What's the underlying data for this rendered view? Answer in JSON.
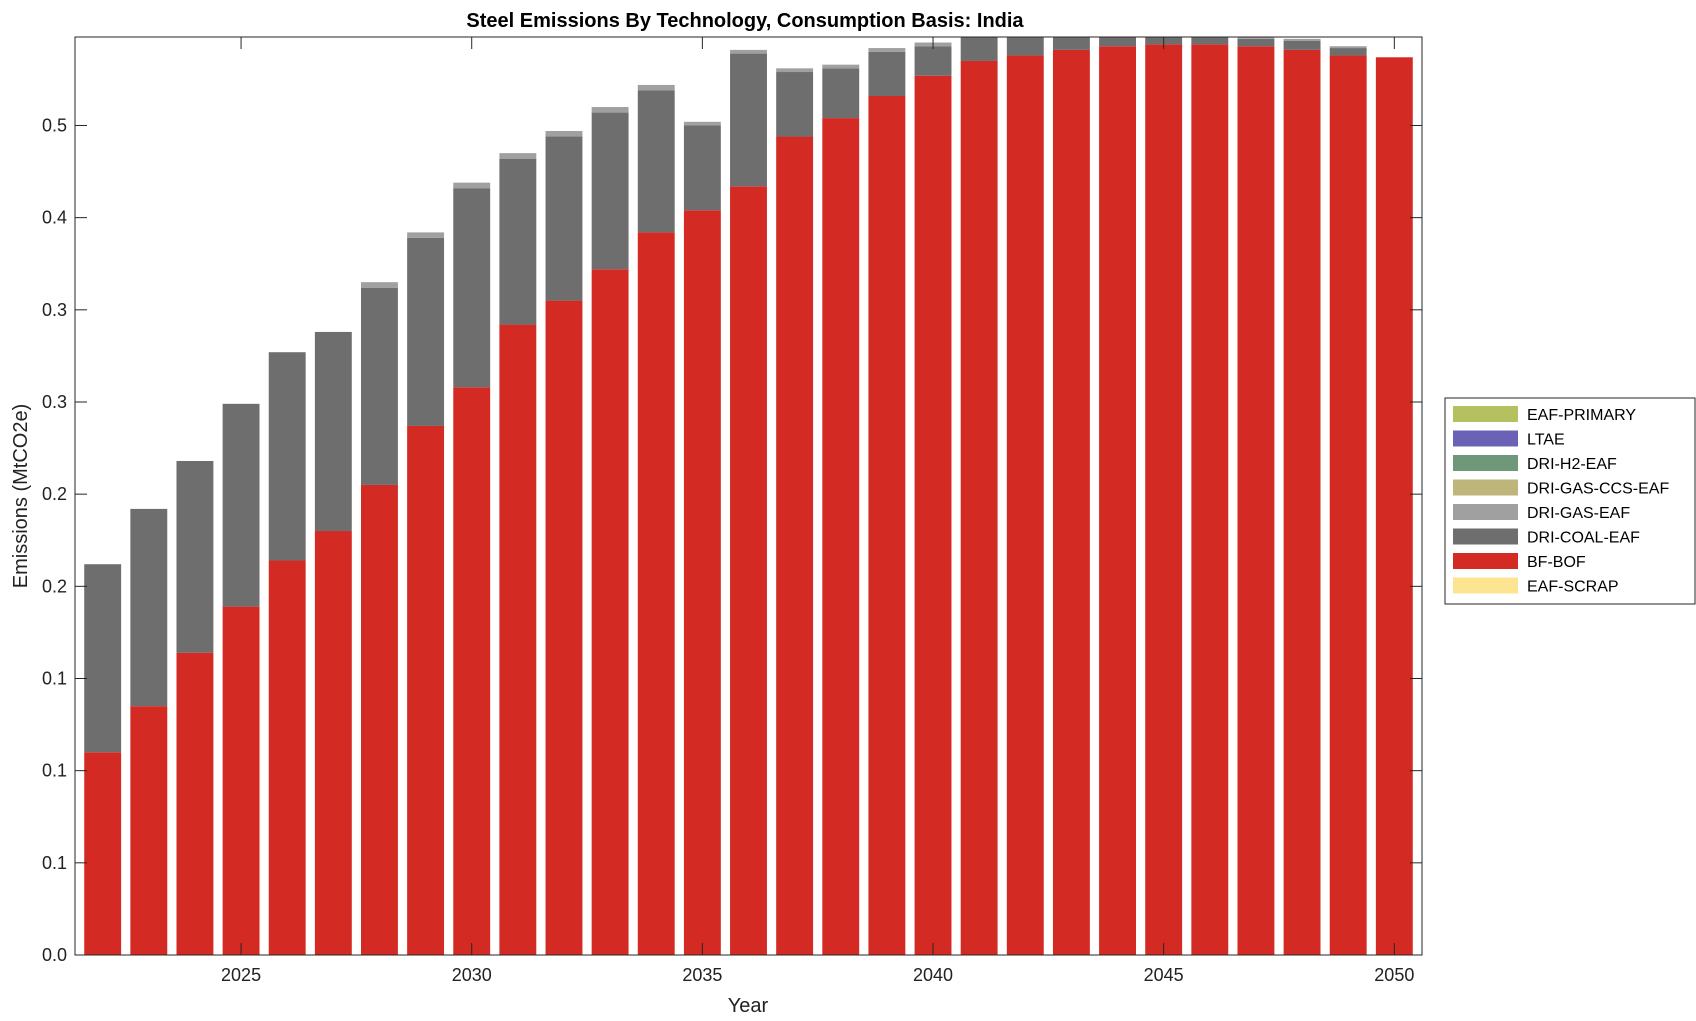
{
  "chart_data": {
    "type": "bar",
    "stacked": true,
    "title": "Steel Emissions By Technology, Consumption Basis: India",
    "xlabel": "Year",
    "ylabel": "Emissions (MtCO2e)",
    "x": [
      2022,
      2023,
      2024,
      2025,
      2026,
      2027,
      2028,
      2029,
      2030,
      2031,
      2032,
      2033,
      2034,
      2035,
      2036,
      2037,
      2038,
      2039,
      2040,
      2041,
      2042,
      2043,
      2044,
      2045,
      2046,
      2047,
      2048,
      2049,
      2050
    ],
    "x_ticks": [
      2025,
      2030,
      2035,
      2040,
      2045,
      2050
    ],
    "xlim": [
      2021.4,
      2050.6
    ],
    "ylim": [
      0,
      0.498
    ],
    "y_tick_values": [
      0,
      0.05,
      0.1,
      0.15,
      0.2,
      0.25,
      0.3,
      0.35,
      0.4,
      0.45
    ],
    "y_tick_labels": [
      "0.0",
      "0.1",
      "0.1",
      "0.1",
      "0.2",
      "0.2",
      "0.3",
      "0.3",
      "0.4",
      "0.5"
    ],
    "grid": false,
    "legend_position": "right",
    "series": [
      {
        "name": "EAF-PRIMARY",
        "color": "#b5c05e",
        "values": [
          0,
          0,
          0,
          0,
          0,
          0,
          0,
          0,
          0,
          0,
          0,
          0,
          0,
          0,
          0,
          0,
          0,
          0,
          0,
          0,
          0,
          0,
          0,
          0,
          0,
          0,
          0,
          0,
          0
        ]
      },
      {
        "name": "LTAE",
        "color": "#6a63b5",
        "values": [
          0,
          0,
          0,
          0,
          0,
          0,
          0,
          0,
          0,
          0,
          0,
          0,
          0,
          0,
          0,
          0,
          0,
          0,
          0,
          0,
          0,
          0,
          0,
          0,
          0,
          0,
          0,
          0,
          0
        ]
      },
      {
        "name": "DRI-H2-EAF",
        "color": "#6f987a",
        "values": [
          0,
          0,
          0,
          0,
          0,
          0,
          0,
          0,
          0,
          0,
          0,
          0,
          0,
          0,
          0,
          0,
          0,
          0,
          0,
          0,
          0,
          0,
          0,
          0,
          0,
          0,
          0,
          0,
          0
        ]
      },
      {
        "name": "DRI-GAS-CCS-EAF",
        "color": "#bdb57a",
        "values": [
          0,
          0,
          0,
          0,
          0,
          0,
          0,
          0,
          0,
          0,
          0,
          0,
          0,
          0,
          0,
          0,
          0,
          0,
          0,
          0,
          0,
          0,
          0,
          0,
          0,
          0,
          0,
          0,
          0
        ]
      },
      {
        "name": "DRI-GAS-EAF",
        "color": "#a0a0a0",
        "values": [
          0,
          0,
          0,
          0,
          0,
          0,
          0.003,
          0.003,
          0.003,
          0.003,
          0.003,
          0.003,
          0.003,
          0.002,
          0.002,
          0.002,
          0.002,
          0.002,
          0.002,
          0.001,
          0.001,
          0.001,
          0.001,
          0.001,
          0.001,
          0.001,
          0.001,
          0.001,
          0
        ]
      },
      {
        "name": "DRI-COAL-EAF",
        "color": "#6e6e6e",
        "values": [
          0.102,
          0.107,
          0.104,
          0.11,
          0.113,
          0.108,
          0.107,
          0.102,
          0.108,
          0.09,
          0.089,
          0.085,
          0.077,
          0.046,
          0.072,
          0.035,
          0.027,
          0.024,
          0.016,
          0.013,
          0.012,
          0.009,
          0.008,
          0.007,
          0.004,
          0.004,
          0.005,
          0.004,
          0
        ]
      },
      {
        "name": "BF-BOF",
        "color": "#d42a24",
        "values": [
          0.11,
          0.135,
          0.164,
          0.189,
          0.214,
          0.23,
          0.255,
          0.287,
          0.308,
          0.342,
          0.355,
          0.372,
          0.392,
          0.404,
          0.417,
          0.444,
          0.454,
          0.466,
          0.477,
          0.485,
          0.488,
          0.491,
          0.493,
          0.494,
          0.494,
          0.493,
          0.491,
          0.488,
          0.487
        ]
      },
      {
        "name": "EAF-SCRAP",
        "color": "#fde491",
        "values": [
          0,
          0,
          0,
          0,
          0,
          0,
          0,
          0,
          0,
          0,
          0,
          0,
          0,
          0,
          0,
          0,
          0,
          0,
          0,
          0,
          0,
          0,
          0,
          0,
          0,
          0,
          0,
          0,
          0
        ]
      }
    ],
    "stack_order": [
      "BF-BOF",
      "DRI-COAL-EAF",
      "DRI-GAS-EAF",
      "DRI-GAS-CCS-EAF",
      "DRI-H2-EAF",
      "LTAE",
      "EAF-PRIMARY",
      "EAF-SCRAP"
    ]
  }
}
